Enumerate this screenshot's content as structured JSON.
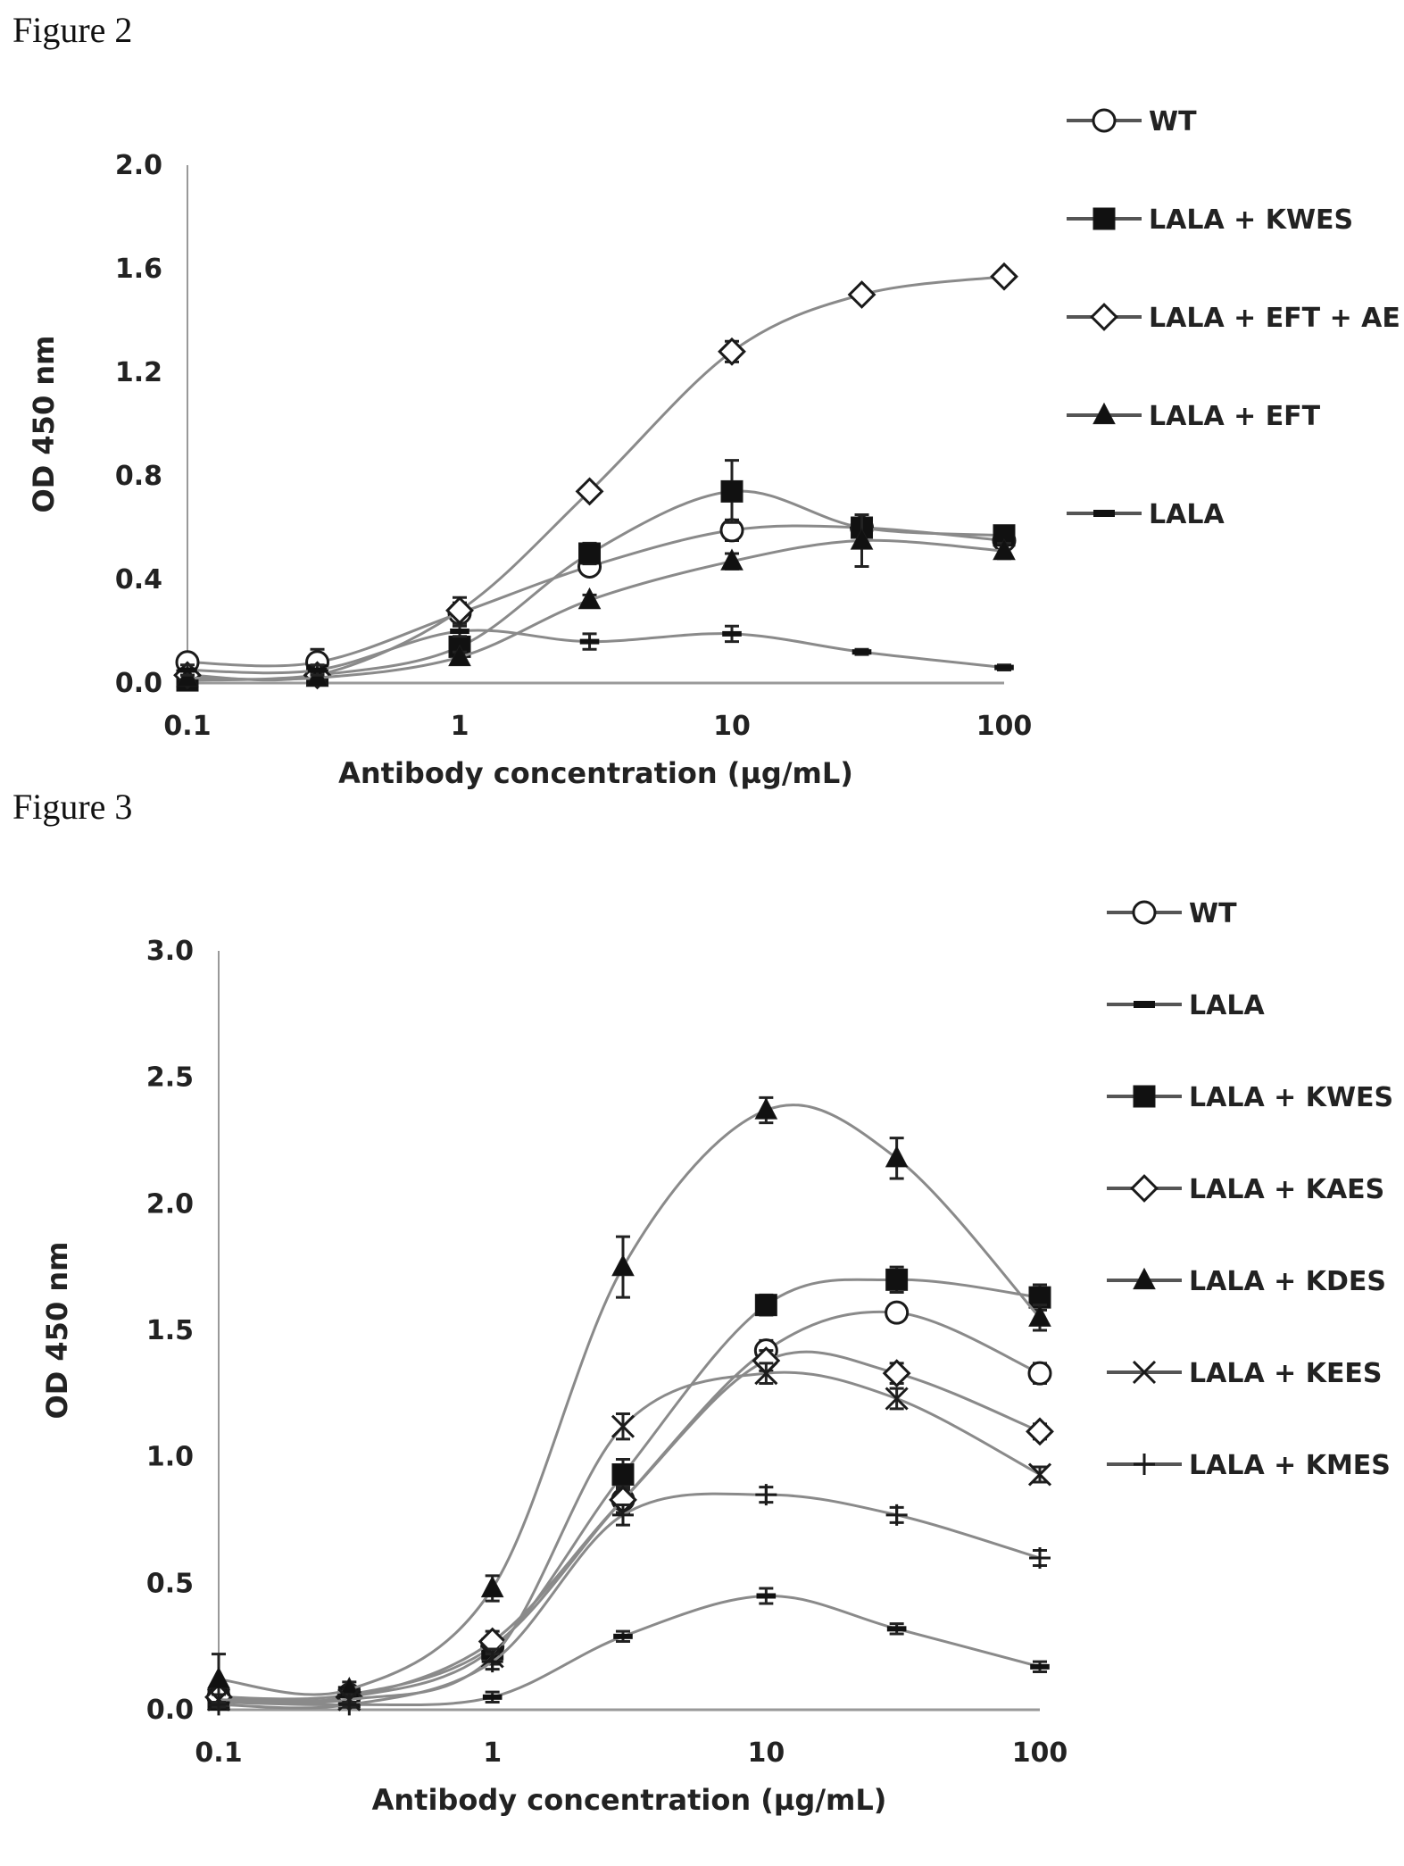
{
  "figures": [
    {
      "label": "Figure 2"
    },
    {
      "label": "Figure 3"
    }
  ],
  "chart_data": [
    {
      "type": "line",
      "title": "",
      "xlabel": "Antibody concentration (µg/mL)",
      "ylabel": "OD 450 nm",
      "xscale": "log",
      "xlim": [
        0.1,
        100
      ],
      "ylim": [
        0.0,
        2.0
      ],
      "x_ticks": [
        "0.1",
        "1",
        "10",
        "100"
      ],
      "y_ticks": [
        "0.0",
        "0.4",
        "0.8",
        "1.2",
        "1.6",
        "2.0"
      ],
      "x": [
        0.1,
        0.3,
        1,
        3,
        10,
        30,
        100
      ],
      "legend_position": "right",
      "error_bars": true,
      "series": [
        {
          "name": "WT",
          "marker": "circle-open",
          "values": [
            0.08,
            0.08,
            0.27,
            0.45,
            0.59,
            0.6,
            0.55
          ],
          "errors": [
            0.03,
            0.05,
            0.04,
            0.03,
            0.04,
            0.03,
            0.02
          ]
        },
        {
          "name": "LALA + KWES",
          "marker": "square-filled",
          "values": [
            0.01,
            0.03,
            0.14,
            0.5,
            0.74,
            0.6,
            0.57
          ],
          "errors": [
            0.01,
            0.02,
            0.03,
            0.04,
            0.12,
            0.03,
            0.03
          ]
        },
        {
          "name": "LALA + EFT + AE",
          "marker": "diamond-open",
          "values": [
            0.03,
            0.03,
            0.28,
            0.74,
            1.28,
            1.5,
            1.57
          ],
          "errors": [
            0.01,
            0.02,
            0.05,
            0.02,
            0.04,
            0.02,
            0.02
          ]
        },
        {
          "name": "LALA + EFT",
          "marker": "triangle-filled",
          "values": [
            0.02,
            0.02,
            0.1,
            0.32,
            0.47,
            0.55,
            0.51
          ],
          "errors": [
            0.01,
            0.02,
            0.02,
            0.02,
            0.03,
            0.1,
            0.03
          ]
        },
        {
          "name": "LALA",
          "marker": "dash",
          "values": [
            0.05,
            0.05,
            0.2,
            0.16,
            0.19,
            0.12,
            0.06
          ],
          "errors": [
            0.02,
            0.02,
            0.02,
            0.03,
            0.03,
            0.01,
            0.01
          ]
        }
      ]
    },
    {
      "type": "line",
      "title": "",
      "xlabel": "Antibody concentration (µg/mL)",
      "ylabel": "OD 450 nm",
      "xscale": "log",
      "xlim": [
        0.1,
        100
      ],
      "ylim": [
        0.0,
        3.0
      ],
      "x_ticks": [
        "0.1",
        "1",
        "10",
        "100"
      ],
      "y_ticks": [
        "0.0",
        "0.5",
        "1.0",
        "1.5",
        "2.0",
        "2.5",
        "3.0"
      ],
      "x": [
        0.1,
        0.3,
        1,
        3,
        10,
        30,
        100
      ],
      "legend_position": "right",
      "error_bars": true,
      "series": [
        {
          "name": "WT",
          "marker": "circle-open",
          "values": [
            0.05,
            0.06,
            0.25,
            0.83,
            1.42,
            1.57,
            1.33
          ],
          "errors": [
            0.03,
            0.03,
            0.04,
            0.05,
            0.04,
            0.03,
            0.04
          ]
        },
        {
          "name": "LALA",
          "marker": "dash",
          "values": [
            0.03,
            0.02,
            0.05,
            0.29,
            0.45,
            0.32,
            0.17
          ],
          "errors": [
            0.01,
            0.01,
            0.02,
            0.02,
            0.03,
            0.02,
            0.02
          ]
        },
        {
          "name": "LALA + KWES",
          "marker": "square-filled",
          "values": [
            0.04,
            0.05,
            0.24,
            0.93,
            1.6,
            1.7,
            1.63
          ],
          "errors": [
            0.02,
            0.03,
            0.04,
            0.06,
            0.04,
            0.05,
            0.05
          ]
        },
        {
          "name": "LALA + KAES",
          "marker": "diamond-open",
          "values": [
            0.05,
            0.05,
            0.27,
            0.83,
            1.38,
            1.33,
            1.1
          ],
          "errors": [
            0.02,
            0.03,
            0.04,
            0.05,
            0.04,
            0.04,
            0.03
          ]
        },
        {
          "name": "LALA + KDES",
          "marker": "triangle-filled",
          "values": [
            0.12,
            0.08,
            0.48,
            1.75,
            2.37,
            2.18,
            1.55
          ],
          "errors": [
            0.1,
            0.03,
            0.05,
            0.12,
            0.05,
            0.08,
            0.05
          ]
        },
        {
          "name": "LALA + KEES",
          "marker": "x",
          "values": [
            0.04,
            0.04,
            0.21,
            1.12,
            1.33,
            1.23,
            0.93
          ],
          "errors": [
            0.02,
            0.02,
            0.03,
            0.05,
            0.04,
            0.04,
            0.03
          ]
        },
        {
          "name": "LALA + KMES",
          "marker": "plus",
          "values": [
            0.02,
            0.02,
            0.19,
            0.77,
            0.85,
            0.77,
            0.6
          ],
          "errors": [
            0.01,
            0.01,
            0.03,
            0.04,
            0.03,
            0.03,
            0.03
          ]
        }
      ]
    }
  ]
}
